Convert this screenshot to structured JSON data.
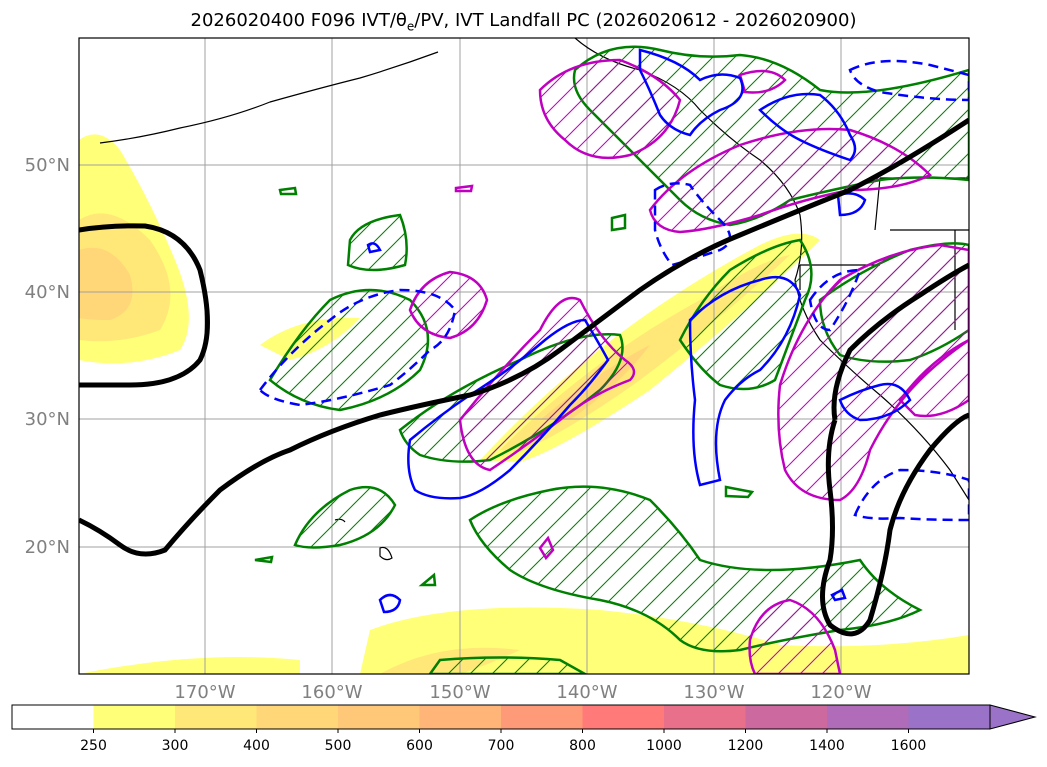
{
  "title": {
    "prefix": "2026020400 F096 IVT/θ",
    "theta_sub": "e",
    "suffix": "/PV, IVT Landfall PC (2026020612 - 2026020900)"
  },
  "axes": {
    "lat_labels": [
      "50°N",
      "40°N",
      "30°N",
      "20°N"
    ],
    "lon_labels": [
      "170°W",
      "160°W",
      "150°W",
      "140°W",
      "130°W",
      "120°W"
    ]
  },
  "colorbar": {
    "ticks": [
      "250",
      "300",
      "400",
      "500",
      "600",
      "700",
      "800",
      "1000",
      "1200",
      "1400",
      "1600"
    ],
    "colors": [
      "#ffffff",
      "#ffff78",
      "#ffe878",
      "#ffd678",
      "#ffc878",
      "#ffb478",
      "#ff9a78",
      "#ff7a78",
      "#e8708a",
      "#cc6aa0",
      "#b06cb8",
      "#9a72c8"
    ]
  },
  "legend_colors": {
    "ivt_mean": "#000000",
    "pc_green": "#008000",
    "pc_magenta": "#c000c0",
    "pc_blue": "#0000ff"
  }
}
